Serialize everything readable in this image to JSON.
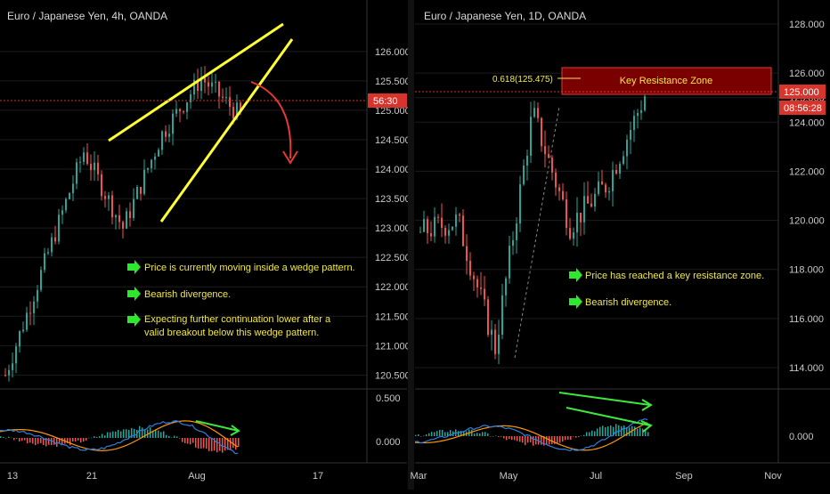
{
  "colors": {
    "background": "#000000",
    "grid": "#1c1c1c",
    "candle_up": "#26a69a",
    "candle_down": "#ef5350",
    "wedge_lines": "#ffff33",
    "arrow": "#e53935",
    "annotation_text": "#f2e84a",
    "bullet_arrow": "#2ee82e",
    "price_tag": "#d9342b",
    "zone_fill": "#7a0000",
    "zone_border": "#e33a3a",
    "macd_line": "#2f7fe0",
    "signal_line": "#ff9800",
    "divergence": "#3ee83e"
  },
  "chart_data": [
    {
      "type": "candlestick",
      "title": "Euro / Japanese Yen, 4h, OANDA",
      "y_ticks": [
        "126.000",
        "125.500",
        "125.000",
        "124.500",
        "124.000",
        "123.500",
        "123.000",
        "122.500",
        "122.000",
        "121.500",
        "121.000",
        "120.500"
      ],
      "x_ticks": [
        "13",
        "21",
        "Aug",
        "17"
      ],
      "ylim": [
        120.4,
        126.3
      ],
      "current_price_label": "56:30",
      "series_shape": [
        [
          "13 Jul",
          120.5
        ],
        [
          "18 Jul",
          122.4
        ],
        [
          "23 Jul",
          124.3
        ],
        [
          "26 Jul",
          123.0
        ],
        [
          "2 Aug",
          124.6
        ],
        [
          "8 Aug",
          125.55
        ],
        [
          "10 Aug",
          124.9
        ]
      ],
      "pattern": "rising wedge",
      "annotations": [
        "Price is currently moving inside a wedge pattern.",
        "Bearish divergence.",
        "Expecting further continuation lower after a",
        "valid breakout below this wedge pattern."
      ],
      "indicator": {
        "name": "MACD",
        "y_ticks": [
          "0.500",
          "0.000"
        ]
      }
    },
    {
      "type": "candlestick",
      "title": "Euro / Japanese Yen, 1D, OANDA",
      "y_ticks": [
        "128.000",
        "126.000",
        "125.000",
        "124.000",
        "122.000",
        "120.000",
        "118.000",
        "116.000",
        "114.000"
      ],
      "x_ticks": [
        "Mar",
        "May",
        "Jul",
        "Sep",
        "Nov"
      ],
      "ylim": [
        113.6,
        128.4
      ],
      "current_price_label": "125.000",
      "countdown_label": "08:56:28",
      "series_shape": [
        [
          "Mar",
          119.5
        ],
        [
          "Apr",
          120.0
        ],
        [
          "May",
          114.8
        ],
        [
          "Jun",
          124.4
        ],
        [
          "Jun-late",
          119.8
        ],
        [
          "Jul",
          121.5
        ],
        [
          "Aug",
          125.1
        ]
      ],
      "fib_label": "0.618(125.475)",
      "zone_label": "Key Resistance Zone",
      "annotations": [
        "Price has reached a key resistance zone.",
        "Bearish divergence."
      ],
      "indicator": {
        "name": "MACD",
        "y_ticks": [
          "0.000"
        ]
      }
    }
  ]
}
